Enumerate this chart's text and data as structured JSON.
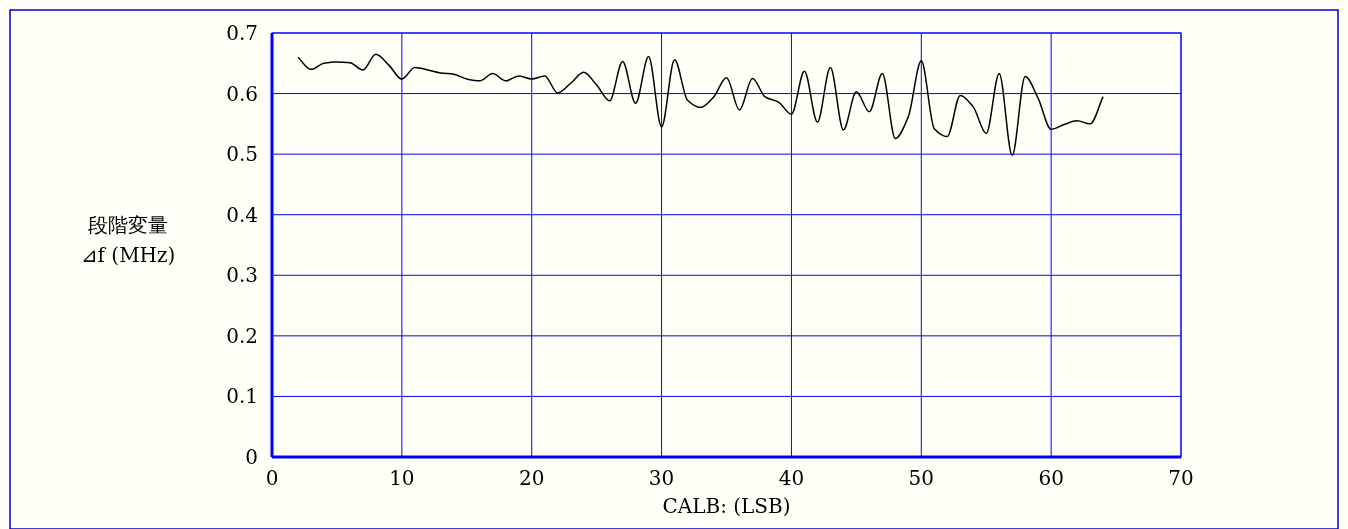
{
  "chart_data": {
    "type": "line",
    "xlabel": "CALB: (LSB)",
    "ylabel": "段階変量\n⊿f (MHz)",
    "xlim": [
      0,
      70
    ],
    "xticks": [
      0,
      10,
      20,
      30,
      40,
      50,
      60,
      70
    ],
    "ylim": [
      0,
      0.7
    ],
    "yticks": [
      0,
      0.1,
      0.2,
      0.3,
      0.4,
      0.5,
      0.6,
      0.7
    ],
    "grid": true,
    "x": [
      2,
      3,
      4,
      5,
      6,
      7,
      8,
      9,
      10,
      11,
      12,
      13,
      14,
      15,
      16,
      17,
      18,
      19,
      20,
      21,
      22,
      23,
      24,
      25,
      26,
      27,
      28,
      29,
      30,
      31,
      32,
      33,
      34,
      35,
      36,
      37,
      38,
      39,
      40,
      41,
      42,
      43,
      44,
      45,
      46,
      47,
      48,
      49,
      50,
      51,
      52,
      53,
      54,
      55,
      56,
      57,
      58,
      59,
      60,
      61,
      62,
      63,
      64
    ],
    "series": [
      {
        "color": "#000000",
        "values": [
          0.66,
          0.64,
          0.65,
          0.652,
          0.651,
          0.639,
          0.665,
          0.647,
          0.624,
          0.643,
          0.639,
          0.634,
          0.632,
          0.624,
          0.621,
          0.633,
          0.621,
          0.629,
          0.624,
          0.629,
          0.601,
          0.617,
          0.635,
          0.614,
          0.588,
          0.653,
          0.584,
          0.661,
          0.545,
          0.656,
          0.589,
          0.577,
          0.594,
          0.626,
          0.573,
          0.625,
          0.594,
          0.586,
          0.566,
          0.637,
          0.553,
          0.643,
          0.54,
          0.603,
          0.57,
          0.633,
          0.526,
          0.562,
          0.654,
          0.542,
          0.529,
          0.597,
          0.578,
          0.534,
          0.633,
          0.498,
          0.628,
          0.592,
          0.541,
          0.549,
          0.555,
          0.55,
          0.595
        ]
      }
    ]
  }
}
